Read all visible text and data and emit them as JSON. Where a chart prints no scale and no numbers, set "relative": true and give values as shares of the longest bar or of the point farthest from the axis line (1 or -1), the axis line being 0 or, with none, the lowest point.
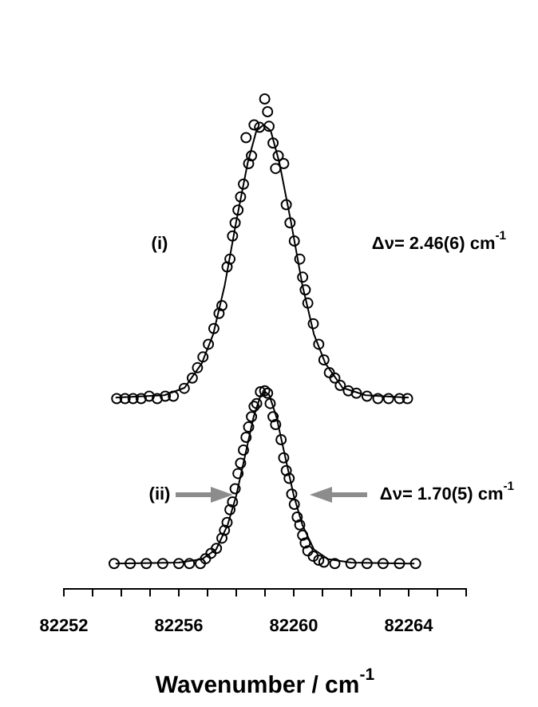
{
  "chart_data": {
    "type": "scatter",
    "relative": true,
    "xlabel": "Wavenumber / cm$^{-1}$",
    "xlim": [
      82252,
      82266
    ],
    "xticks": [
      82252,
      {
        "value": 82253,
        "label": null
      },
      {
        "value": 82254,
        "label": null
      },
      {
        "value": 82255,
        "label": null
      },
      82256,
      {
        "value": 82257,
        "label": null
      },
      {
        "value": 82258,
        "label": null
      },
      {
        "value": 82259,
        "label": null
      },
      82260,
      {
        "value": 82261,
        "label": null
      },
      {
        "value": 82262,
        "label": null
      },
      {
        "value": 82263,
        "label": null
      },
      82264,
      {
        "value": 82265,
        "label": null
      },
      {
        "value": 82266,
        "label": null
      }
    ],
    "tick_labels": "x",
    "grid": false,
    "legend": false,
    "marker": "circle",
    "annotations": [
      "(i)",
      "Δν= 2.46(6) cm$^{-1}$",
      "(ii)",
      "Δν= 1.70(5) cm$^{-1}$"
    ],
    "series": [
      {
        "type": "scatter",
        "color": "#000000",
        "x": [
          82253.84,
          82254.13,
          82254.41,
          82254.69,
          82254.97,
          82255.25,
          82255.53,
          82255.81,
          82256.19,
          82256.47,
          82256.65,
          82256.84,
          82257.03,
          82257.22,
          82257.4,
          82257.5,
          82257.68,
          82257.78,
          82257.87,
          82257.96,
          82258.06,
          82258.15,
          82258.25,
          82258.43,
          82258.53,
          82258.34,
          82258.62,
          82258.81,
          82258.99,
          82259.09,
          82259.14,
          82259.28,
          82259.37,
          82259.46,
          82259.65,
          82259.74,
          82259.87,
          82260.02,
          82260.21,
          82260.31,
          82260.4,
          82260.49,
          82260.68,
          82260.87,
          82261.05,
          82261.24,
          82261.43,
          82261.62,
          82261.9,
          82262.18,
          82262.55,
          82262.93,
          82263.3,
          82263.68,
          82263.96
        ],
        "values": [
          0.388,
          0.388,
          0.388,
          0.388,
          0.393,
          0.388,
          0.393,
          0.393,
          0.409,
          0.43,
          0.451,
          0.473,
          0.499,
          0.531,
          0.562,
          0.578,
          0.657,
          0.673,
          0.72,
          0.747,
          0.773,
          0.8,
          0.826,
          0.868,
          0.884,
          0.921,
          0.947,
          0.942,
          1.0,
          0.974,
          0.944,
          0.91,
          0.858,
          0.884,
          0.868,
          0.784,
          0.747,
          0.71,
          0.673,
          0.636,
          0.61,
          0.583,
          0.541,
          0.499,
          0.467,
          0.441,
          0.43,
          0.415,
          0.404,
          0.399,
          0.393,
          0.388,
          0.388,
          0.388,
          0.388
        ]
      },
      {
        "type": "line",
        "marker": "none",
        "color": "#000000",
        "x": [
          82253.8,
          82255.5,
          82256.2,
          82256.8,
          82257.2,
          82257.6,
          82258.0,
          82258.4,
          82258.7,
          82258.95,
          82259.2,
          82259.5,
          82259.9,
          82260.3,
          82260.7,
          82261.1,
          82261.7,
          82262.5,
          82264.0
        ],
        "values": [
          0.39,
          0.395,
          0.41,
          0.46,
          0.52,
          0.62,
          0.75,
          0.87,
          0.935,
          0.947,
          0.935,
          0.87,
          0.75,
          0.62,
          0.52,
          0.46,
          0.41,
          0.395,
          0.39
        ]
      },
      {
        "type": "scatter",
        "color": "#000000",
        "x": [
          82253.75,
          82254.31,
          82254.87,
          82255.44,
          82256.0,
          82256.37,
          82256.75,
          82256.93,
          82257.12,
          82257.31,
          82257.5,
          82257.59,
          82257.68,
          82257.78,
          82257.87,
          82257.96,
          82258.06,
          82258.15,
          82258.25,
          82258.34,
          82258.43,
          82258.53,
          82258.62,
          82258.71,
          82258.84,
          82258.99,
          82259.09,
          82259.18,
          82259.28,
          82259.37,
          82259.56,
          82259.65,
          82259.74,
          82259.84,
          82259.93,
          82260.02,
          82260.12,
          82260.21,
          82260.31,
          82260.4,
          82260.49,
          82260.68,
          82260.87,
          82261.05,
          82261.43,
          82261.99,
          82262.55,
          82263.11,
          82263.68,
          82264.24
        ],
        "values": [
          0.051,
          0.051,
          0.051,
          0.051,
          0.051,
          0.051,
          0.051,
          0.061,
          0.072,
          0.082,
          0.103,
          0.119,
          0.135,
          0.161,
          0.177,
          0.204,
          0.235,
          0.256,
          0.283,
          0.309,
          0.33,
          0.351,
          0.372,
          0.378,
          0.402,
          0.404,
          0.399,
          0.378,
          0.351,
          0.335,
          0.304,
          0.267,
          0.241,
          0.225,
          0.193,
          0.172,
          0.146,
          0.13,
          0.109,
          0.093,
          0.077,
          0.066,
          0.058,
          0.054,
          0.051,
          0.051,
          0.051,
          0.051,
          0.051,
          0.051
        ]
      },
      {
        "type": "line",
        "marker": "none",
        "color": "#000000",
        "x": [
          82253.8,
          82256.0,
          82256.8,
          82257.3,
          82257.7,
          82258.0,
          82258.3,
          82258.6,
          82258.85,
          82259.0,
          82259.15,
          82259.4,
          82259.7,
          82260.0,
          82260.3,
          82260.7,
          82261.2,
          82262.0,
          82264.2
        ],
        "values": [
          0.051,
          0.053,
          0.06,
          0.08,
          0.13,
          0.19,
          0.27,
          0.35,
          0.395,
          0.402,
          0.395,
          0.35,
          0.27,
          0.19,
          0.13,
          0.08,
          0.06,
          0.053,
          0.051
        ]
      }
    ]
  }
}
